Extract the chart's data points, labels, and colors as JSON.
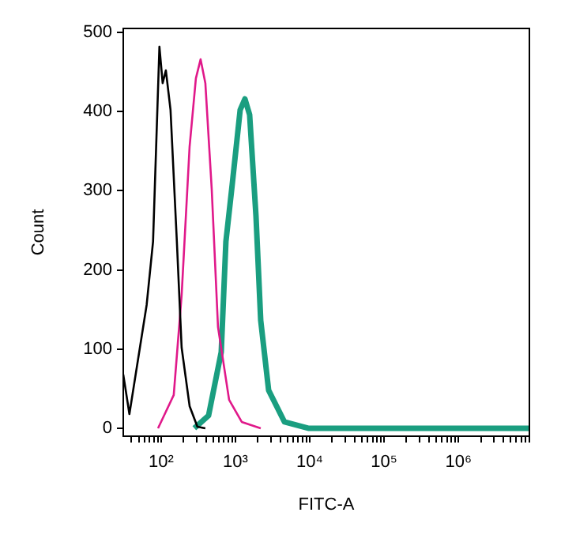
{
  "chart_data": {
    "type": "line",
    "xlabel": "FITC-A",
    "ylabel": "Count",
    "log": "x",
    "grid": false,
    "legend": false,
    "marker": "none",
    "line_style": "solid",
    "xlim": [
      31,
      9000000
    ],
    "ylim": [
      -10,
      505
    ],
    "xticks": [
      {
        "value": 40,
        "label": null
      },
      {
        "value": 50,
        "label": null
      },
      {
        "value": 60,
        "label": null
      },
      {
        "value": 70,
        "label": null
      },
      {
        "value": 80,
        "label": null
      },
      {
        "value": 90,
        "label": null
      },
      {
        "value": 100,
        "label": "10²"
      },
      {
        "value": 200,
        "label": null
      },
      {
        "value": 300,
        "label": null
      },
      {
        "value": 400,
        "label": null
      },
      {
        "value": 500,
        "label": null
      },
      {
        "value": 600,
        "label": null
      },
      {
        "value": 700,
        "label": null
      },
      {
        "value": 800,
        "label": null
      },
      {
        "value": 900,
        "label": null
      },
      {
        "value": 1000,
        "label": "10³"
      },
      {
        "value": 2000,
        "label": null
      },
      {
        "value": 3000,
        "label": null
      },
      {
        "value": 4000,
        "label": null
      },
      {
        "value": 5000,
        "label": null
      },
      {
        "value": 6000,
        "label": null
      },
      {
        "value": 7000,
        "label": null
      },
      {
        "value": 8000,
        "label": null
      },
      {
        "value": 9000,
        "label": null
      },
      {
        "value": 10000,
        "label": "10⁴"
      },
      {
        "value": 20000,
        "label": null
      },
      {
        "value": 30000,
        "label": null
      },
      {
        "value": 40000,
        "label": null
      },
      {
        "value": 50000,
        "label": null
      },
      {
        "value": 60000,
        "label": null
      },
      {
        "value": 70000,
        "label": null
      },
      {
        "value": 80000,
        "label": null
      },
      {
        "value": 90000,
        "label": null
      },
      {
        "value": 100000,
        "label": "10⁵"
      },
      {
        "value": 200000,
        "label": null
      },
      {
        "value": 300000,
        "label": null
      },
      {
        "value": 400000,
        "label": null
      },
      {
        "value": 500000,
        "label": null
      },
      {
        "value": 600000,
        "label": null
      },
      {
        "value": 700000,
        "label": null
      },
      {
        "value": 800000,
        "label": null
      },
      {
        "value": 900000,
        "label": null
      },
      {
        "value": 1000000,
        "label": "10⁶"
      },
      {
        "value": 2000000,
        "label": null
      },
      {
        "value": 3000000,
        "label": null
      },
      {
        "value": 4000000,
        "label": null
      },
      {
        "value": 5000000,
        "label": null
      },
      {
        "value": 6000000,
        "label": null
      },
      {
        "value": 7000000,
        "label": null
      },
      {
        "value": 8000000,
        "label": null
      },
      {
        "value": 9000000,
        "label": null
      }
    ],
    "yticks": [
      0,
      100,
      200,
      300,
      400,
      500
    ],
    "series": [
      {
        "color": "#000000",
        "x": [
          31,
          37.5,
          64,
          78,
          95,
          105,
          116,
          134,
          163,
          189,
          242,
          308,
          394
        ],
        "values": [
          68,
          18,
          156,
          236,
          482,
          436,
          452,
          402,
          236,
          102,
          28,
          2,
          0
        ]
      },
      {
        "color": "#e0198a",
        "x": [
          91,
          148,
          189,
          242,
          294,
          340,
          394,
          480,
          583,
          822,
          1216,
          2190
        ],
        "values": [
          0,
          42,
          168,
          356,
          442,
          466,
          436,
          302,
          128,
          36,
          8,
          0
        ]
      },
      {
        "color": "#1a9e80",
        "x": [
          280,
          435,
          644,
          745,
          906,
          1158,
          1343,
          1553,
          1891,
          2190,
          2797,
          4571,
          9530,
          9000000
        ],
        "values": [
          0,
          16,
          96,
          236,
          308,
          402,
          416,
          396,
          268,
          136,
          48,
          8,
          0,
          0
        ]
      }
    ]
  }
}
